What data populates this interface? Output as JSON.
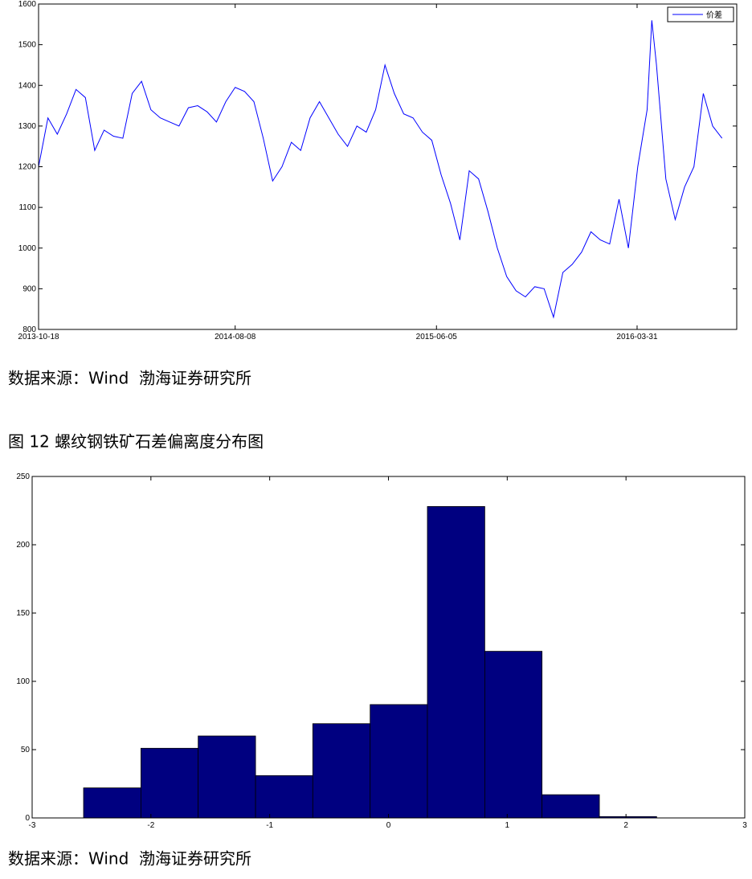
{
  "chart_data": [
    {
      "type": "line",
      "x": [
        "2013-10-18",
        "2013-11-01",
        "2013-11-15",
        "2013-11-29",
        "2013-12-13",
        "2013-12-27",
        "2014-01-10",
        "2014-01-24",
        "2014-02-07",
        "2014-02-21",
        "2014-03-07",
        "2014-03-21",
        "2014-04-04",
        "2014-04-18",
        "2014-05-02",
        "2014-05-16",
        "2014-05-30",
        "2014-06-13",
        "2014-06-27",
        "2014-07-11",
        "2014-07-25",
        "2014-08-08",
        "2014-08-22",
        "2014-09-05",
        "2014-09-19",
        "2014-10-03",
        "2014-10-17",
        "2014-10-31",
        "2014-11-14",
        "2014-11-28",
        "2014-12-12",
        "2014-12-26",
        "2015-01-09",
        "2015-01-23",
        "2015-02-06",
        "2015-02-20",
        "2015-03-06",
        "2015-03-20",
        "2015-04-03",
        "2015-04-17",
        "2015-05-01",
        "2015-05-15",
        "2015-05-29",
        "2015-06-12",
        "2015-06-26",
        "2015-07-10",
        "2015-07-24",
        "2015-08-07",
        "2015-08-21",
        "2015-09-04",
        "2015-09-18",
        "2015-10-02",
        "2015-10-16",
        "2015-10-30",
        "2015-11-13",
        "2015-11-27",
        "2015-12-11",
        "2015-12-25",
        "2016-01-08",
        "2016-01-22",
        "2016-02-05",
        "2016-02-19",
        "2016-03-04",
        "2016-03-18",
        "2016-04-01",
        "2016-04-15",
        "2016-04-22",
        "2016-04-29",
        "2016-05-13",
        "2016-05-27",
        "2016-06-10",
        "2016-06-24",
        "2016-07-08",
        "2016-07-22",
        "2016-08-05"
      ],
      "series": [
        {
          "name": "价差",
          "color": "#0000ff",
          "values": [
            1200,
            1320,
            1280,
            1330,
            1390,
            1370,
            1240,
            1290,
            1275,
            1270,
            1380,
            1410,
            1340,
            1320,
            1310,
            1300,
            1345,
            1350,
            1335,
            1310,
            1360,
            1395,
            1385,
            1360,
            1270,
            1165,
            1200,
            1260,
            1240,
            1320,
            1360,
            1320,
            1280,
            1250,
            1300,
            1285,
            1340,
            1450,
            1380,
            1330,
            1320,
            1285,
            1265,
            1180,
            1110,
            1020,
            1190,
            1170,
            1090,
            1000,
            930,
            895,
            880,
            905,
            900,
            830,
            940,
            960,
            990,
            1040,
            1020,
            1010,
            1120,
            1000,
            1200,
            1340,
            1560,
            1450,
            1170,
            1070,
            1150,
            1200,
            1380,
            1300,
            1270
          ]
        }
      ],
      "xlim": [
        "2013-10-18",
        "2016-08-27"
      ],
      "xticks": [
        "2013-10-18",
        "2014-08-08",
        "2015-06-05",
        "2016-03-31"
      ],
      "ylim": [
        800,
        1600
      ],
      "yticks": [
        800,
        900,
        1000,
        1100,
        1200,
        1300,
        1400,
        1500,
        1600
      ],
      "legend": "upper right"
    },
    {
      "type": "histogram",
      "bins": [
        -2.567,
        -2.084,
        -1.602,
        -1.119,
        -0.637,
        -0.154,
        0.328,
        0.811,
        1.293,
        1.776,
        2.258
      ],
      "values": [
        22,
        51,
        60,
        31,
        69,
        83,
        228,
        122,
        17,
        1
      ],
      "color": "#000080",
      "xlim": [
        -3,
        3
      ],
      "xticks": [
        -3,
        -2,
        -1,
        0,
        1,
        2,
        3
      ],
      "ylim": [
        0,
        250
      ],
      "yticks": [
        0,
        50,
        100,
        150,
        200,
        250
      ]
    }
  ],
  "sources": [
    "数据来源：Wind  渤海证券研究所",
    "数据来源：Wind  渤海证券研究所"
  ],
  "figure_title": "图 12 螺纹钢铁矿石差偏离度分布图"
}
